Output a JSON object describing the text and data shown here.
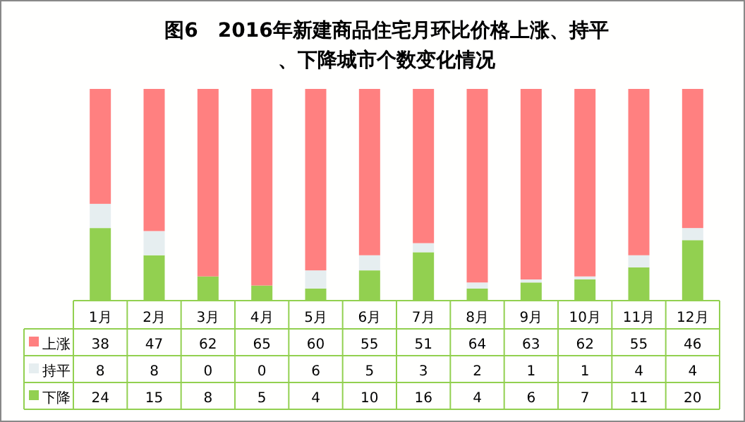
{
  "chart_data": {
    "type": "bar",
    "stacked": true,
    "title": "图6　2016年新建商品住宅月环比价格上涨、持平、下降城市个数变化情况",
    "categories": [
      "1月",
      "2月",
      "3月",
      "4月",
      "5月",
      "6月",
      "7月",
      "8月",
      "9月",
      "10月",
      "11月",
      "12月"
    ],
    "series": [
      {
        "name": "下降",
        "color": "#92d050",
        "values": [
          24,
          15,
          8,
          5,
          4,
          10,
          16,
          4,
          6,
          7,
          11,
          20
        ]
      },
      {
        "name": "持平",
        "color": "#e6eef0",
        "values": [
          8,
          8,
          0,
          0,
          6,
          5,
          3,
          2,
          1,
          1,
          4,
          4
        ]
      },
      {
        "name": "上涨",
        "color": "#ff8080",
        "values": [
          38,
          47,
          62,
          65,
          60,
          55,
          51,
          64,
          63,
          62,
          55,
          46
        ]
      }
    ],
    "ylim": [
      0,
      70
    ],
    "data_labels": true,
    "legend": "bottom left"
  }
}
